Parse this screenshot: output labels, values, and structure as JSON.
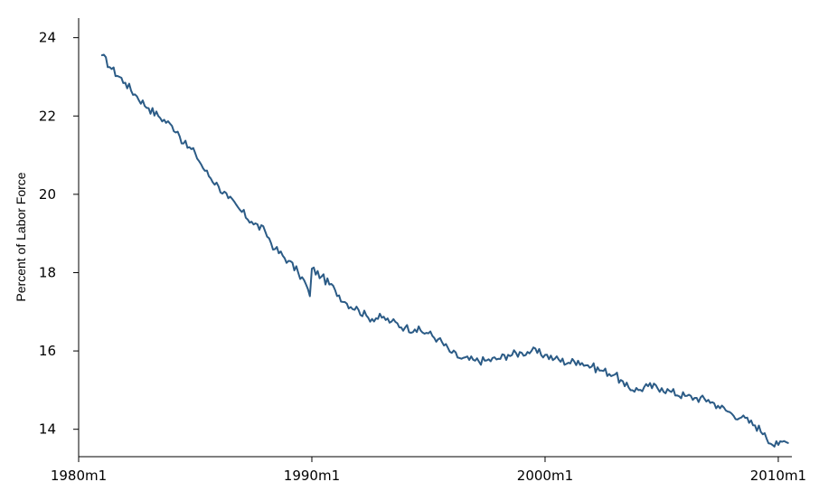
{
  "chart_data": {
    "type": "line",
    "title": "",
    "xlabel": "",
    "ylabel": "Percent of Labor Force",
    "x_start": "1981m1",
    "x_end": "2010m6",
    "xlim": [
      "1980m1",
      "2010m8"
    ],
    "ylim": [
      13.3,
      24.5
    ],
    "x_ticks": [
      {
        "value": "1980m1",
        "label": "1980m1"
      },
      {
        "value": "1990m1",
        "label": "1990m1"
      },
      {
        "value": "2000m1",
        "label": "2000m1"
      },
      {
        "value": "2010m1",
        "label": "2010m1"
      }
    ],
    "y_ticks": [
      14,
      16,
      18,
      20,
      22,
      24
    ],
    "grid": false,
    "line_color": "#2b5b86",
    "series": [
      {
        "name": "",
        "points": [
          [
            "1981m1",
            23.55
          ],
          [
            "1981m6",
            23.2
          ],
          [
            "1982m1",
            22.85
          ],
          [
            "1982m6",
            22.55
          ],
          [
            "1983m1",
            22.2
          ],
          [
            "1983m6",
            22.0
          ],
          [
            "1984m1",
            21.75
          ],
          [
            "1984m4",
            21.6
          ],
          [
            "1984m7",
            21.3
          ],
          [
            "1985m1",
            21.05
          ],
          [
            "1985m6",
            20.6
          ],
          [
            "1986m1",
            20.2
          ],
          [
            "1986m6",
            19.9
          ],
          [
            "1987m1",
            19.55
          ],
          [
            "1987m6",
            19.3
          ],
          [
            "1988m1",
            19.05
          ],
          [
            "1988m6",
            18.6
          ],
          [
            "1989m1",
            18.3
          ],
          [
            "1989m6",
            18.0
          ],
          [
            "1989m10",
            17.7
          ],
          [
            "1989m12",
            17.4
          ],
          [
            "1990m1",
            18.1
          ],
          [
            "1990m6",
            17.9
          ],
          [
            "1991m1",
            17.55
          ],
          [
            "1991m6",
            17.25
          ],
          [
            "1992m1",
            17.05
          ],
          [
            "1992m6",
            16.85
          ],
          [
            "1993m1",
            16.85
          ],
          [
            "1993m6",
            16.75
          ],
          [
            "1994m1",
            16.6
          ],
          [
            "1994m6",
            16.55
          ],
          [
            "1995m1",
            16.45
          ],
          [
            "1995m6",
            16.3
          ],
          [
            "1996m1",
            15.95
          ],
          [
            "1996m6",
            15.8
          ],
          [
            "1997m1",
            15.75
          ],
          [
            "1997m6",
            15.75
          ],
          [
            "1998m1",
            15.8
          ],
          [
            "1998m6",
            15.9
          ],
          [
            "1999m1",
            15.95
          ],
          [
            "1999m6",
            16.0
          ],
          [
            "2000m1",
            15.9
          ],
          [
            "2000m6",
            15.8
          ],
          [
            "2001m1",
            15.7
          ],
          [
            "2001m6",
            15.75
          ],
          [
            "2002m1",
            15.6
          ],
          [
            "2002m6",
            15.5
          ],
          [
            "2003m1",
            15.4
          ],
          [
            "2003m6",
            15.1
          ],
          [
            "2004m1",
            15.0
          ],
          [
            "2004m6",
            15.1
          ],
          [
            "2005m1",
            15.05
          ],
          [
            "2005m6",
            14.95
          ],
          [
            "2006m1",
            14.85
          ],
          [
            "2006m6",
            14.8
          ],
          [
            "2007m1",
            14.75
          ],
          [
            "2007m6",
            14.6
          ],
          [
            "2008m1",
            14.4
          ],
          [
            "2008m6",
            14.3
          ],
          [
            "2009m1",
            14.1
          ],
          [
            "2009m6",
            13.9
          ],
          [
            "2009m10",
            13.6
          ],
          [
            "2010m1",
            13.6
          ],
          [
            "2010m4",
            13.7
          ],
          [
            "2010m6",
            13.65
          ]
        ]
      }
    ]
  }
}
